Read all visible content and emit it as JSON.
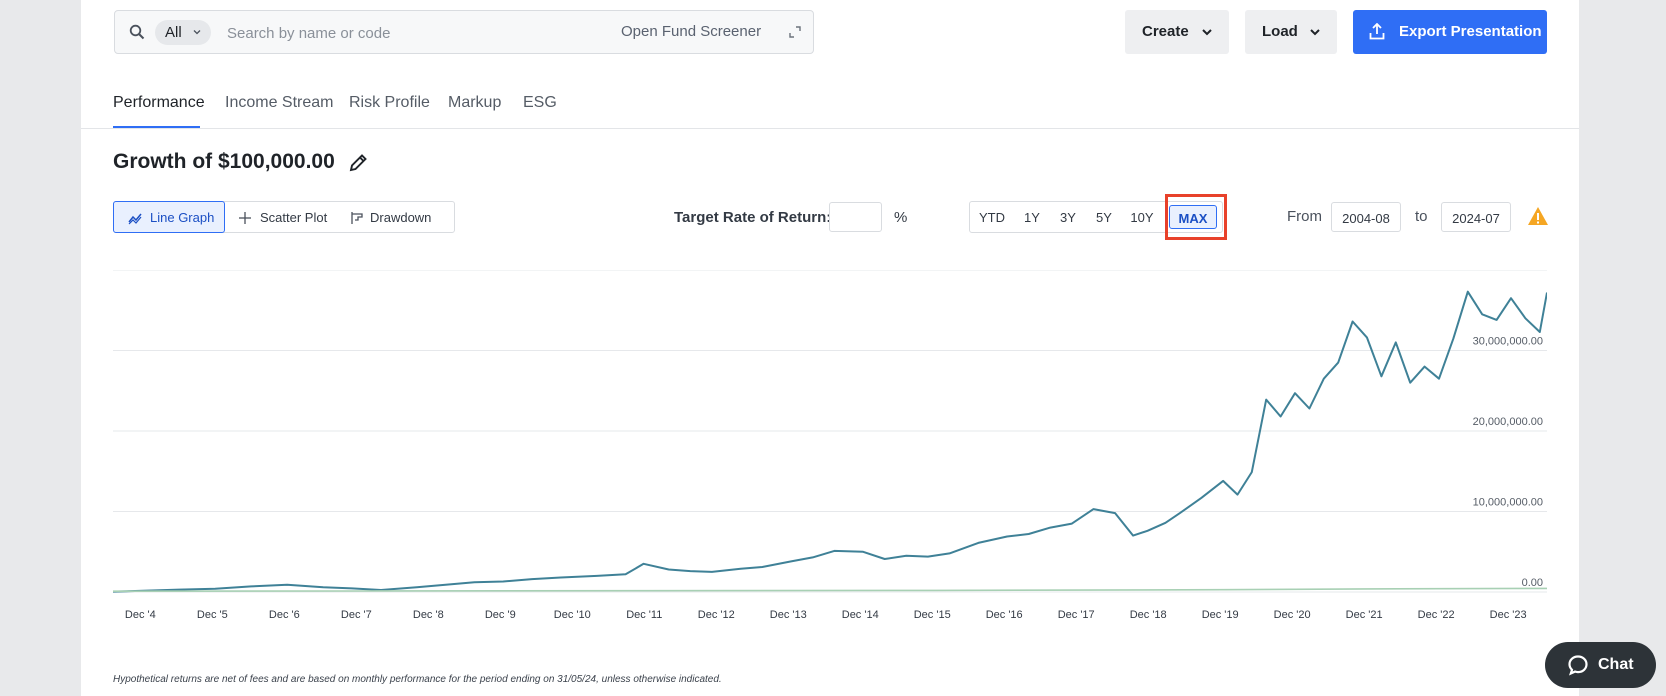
{
  "search": {
    "filter": "All",
    "placeholder": "Search by name or code",
    "screener_label": "Open Fund Screener"
  },
  "toolbar": {
    "create_label": "Create",
    "load_label": "Load",
    "export_label": "Export Presentation"
  },
  "tabs": [
    {
      "label": "Performance",
      "active": true
    },
    {
      "label": "Income Stream"
    },
    {
      "label": "Risk Profile"
    },
    {
      "label": "Markup"
    },
    {
      "label": "ESG"
    }
  ],
  "heading": "Growth of $100,000.00",
  "chart_types": [
    {
      "label": "Line Graph",
      "active": true
    },
    {
      "label": "Scatter Plot"
    },
    {
      "label": "Drawdown"
    }
  ],
  "target_rate": {
    "label": "Target Rate of Return:",
    "value": "",
    "unit": "%"
  },
  "periods": [
    "YTD",
    "1Y",
    "3Y",
    "5Y",
    "10Y",
    "MAX"
  ],
  "active_period": "MAX",
  "range": {
    "from_label": "From",
    "from": "2004-08",
    "to_label": "to",
    "to": "2024-07"
  },
  "note": "Hypothetical returns are net of fees and are based on monthly performance for the period ending on 31/05/24, unless otherwise indicated.",
  "chat_label": "Chat",
  "colors": {
    "accent": "#2f6ef5",
    "series_main": "#3f8197",
    "series_benchmark": "#a8d0b4",
    "highlight": "#e8412a",
    "warning": "#f5a623"
  },
  "chart_data": {
    "type": "line",
    "x_ticks": [
      "Dec '4",
      "Dec '5",
      "Dec '6",
      "Dec '7",
      "Dec '8",
      "Dec '9",
      "Dec '10",
      "Dec '11",
      "Dec '12",
      "Dec '13",
      "Dec '14",
      "Dec '15",
      "Dec '16",
      "Dec '17",
      "Dec '18",
      "Dec '19",
      "Dec '20",
      "Dec '21",
      "Dec '22",
      "Dec '23"
    ],
    "y_ticks": [
      "0.00",
      "10,000,000.00",
      "20,000,000.00",
      "30,000,000.00"
    ],
    "ylim": [
      0,
      40000000
    ],
    "xlim": [
      2004.58,
      2024.5
    ],
    "grid": true,
    "series": [
      {
        "x": [
          2004.58,
          2005.0,
          2005.5,
          2006.0,
          2006.5,
          2007.0,
          2007.5,
          2007.9,
          2008.3,
          2008.8,
          2009.2,
          2009.6,
          2010.0,
          2010.4,
          2010.8,
          2011.3,
          2011.7,
          2011.95,
          2012.3,
          2012.6,
          2012.9,
          2013.3,
          2013.6,
          2014.0,
          2014.3,
          2014.6,
          2015.0,
          2015.3,
          2015.6,
          2015.9,
          2016.2,
          2016.6,
          2017.0,
          2017.3,
          2017.6,
          2017.9,
          2018.2,
          2018.5,
          2018.75,
          2018.95,
          2019.2,
          2019.4,
          2019.7,
          2020.0,
          2020.2,
          2020.4,
          2020.6,
          2020.8,
          2021.0,
          2021.2,
          2021.4,
          2021.6,
          2021.8,
          2022.0,
          2022.2,
          2022.4,
          2022.6,
          2022.8,
          2023.0,
          2023.2,
          2023.4,
          2023.6,
          2023.8,
          2024.0,
          2024.2,
          2024.4,
          2024.5
        ],
        "values": [
          50000,
          150000,
          300000,
          400000,
          700000,
          900000,
          600000,
          450000,
          250000,
          600000,
          900000,
          1200000,
          1300000,
          1600000,
          1800000,
          2000000,
          2200000,
          3500000,
          2800000,
          2600000,
          2500000,
          2900000,
          3100000,
          3800000,
          4300000,
          5100000,
          5000000,
          4100000,
          4500000,
          4400000,
          4800000,
          6100000,
          6900000,
          7200000,
          8000000,
          8500000,
          10300000,
          9800000,
          7000000,
          7600000,
          8600000,
          9800000,
          11700000,
          13800000,
          12100000,
          14900000,
          23900000,
          21800000,
          24700000,
          22800000,
          26500000,
          28500000,
          33600000,
          31600000,
          26800000,
          31000000,
          26000000,
          28000000,
          26500000,
          31500000,
          37300000,
          34500000,
          33800000,
          36500000,
          34000000,
          32300000,
          37200000
        ]
      },
      {
        "x": [
          2004.58,
          2008.0,
          2012.0,
          2016.0,
          2020.0,
          2022.0,
          2024.5
        ],
        "values": [
          100000,
          130000,
          160000,
          200000,
          280000,
          380000,
          450000
        ]
      }
    ]
  }
}
